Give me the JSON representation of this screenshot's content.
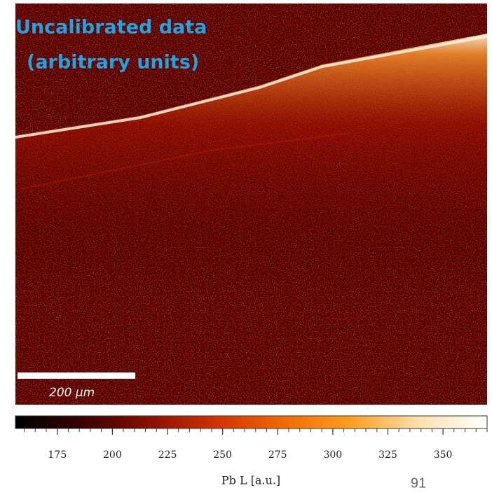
{
  "image": {
    "title_lines": [
      "Uncalibrated data",
      "(arbitrary units)"
    ],
    "scale_bar_label": "200 μm"
  },
  "colorbar": {
    "lim": [
      156,
      370
    ],
    "ticks": [
      175,
      200,
      225,
      250,
      275,
      300,
      325,
      350
    ],
    "label": "Pb L  [a.u.]",
    "colormap": [
      "#000000",
      "#3a0000",
      "#8a0f00",
      "#d43200",
      "#f46a00",
      "#ffa020",
      "#ffe0b0",
      "#ffffff"
    ]
  },
  "page_number": "91"
}
